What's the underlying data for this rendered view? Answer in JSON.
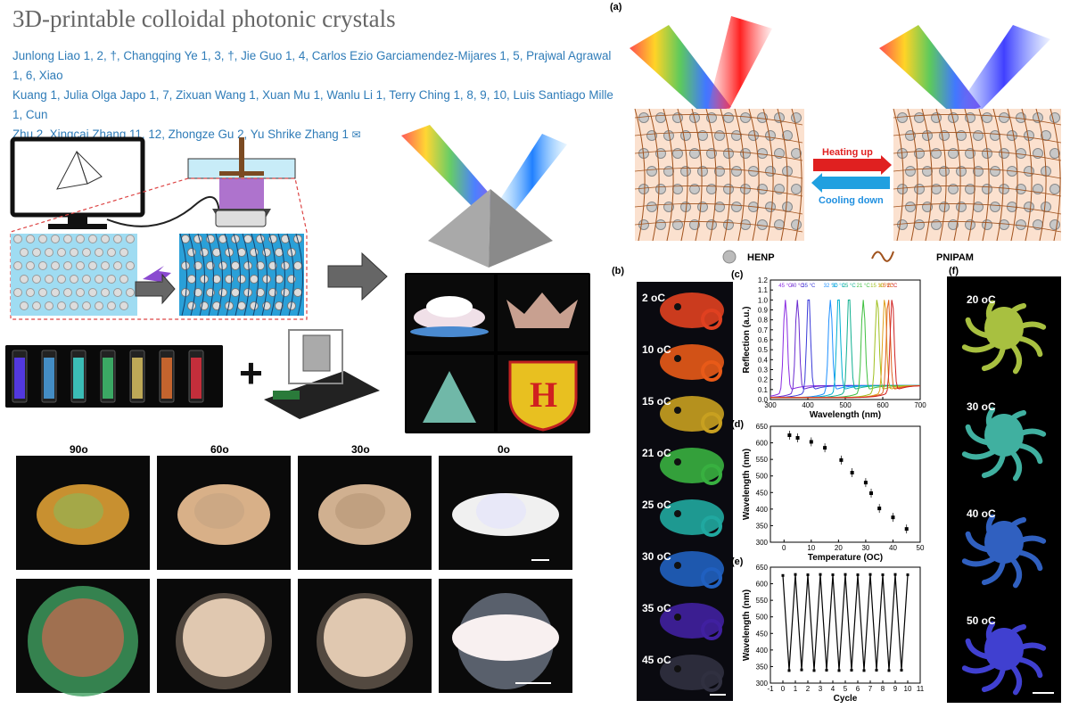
{
  "paper": {
    "title": "3D-printable colloidal photonic crystals",
    "authors_line1": "Junlong Liao 1, 2, †, Changqing Ye 1, 3, †, Jie Guo 1, 4, Carlos Ezio Garciamendez-Mijares 1, 5, Prajwal Agrawal 1, 6, Xiao",
    "authors_line2": "Kuang 1, Julia Olga Japo 1, 7, Zixuan Wang 1, Xuan Mu 1, Wanlu Li 1, Terry Ching 1, 8, 9, 10, Luis Santiago Mille 1, Cun",
    "authors_line3": "Zhu 2, Xingcai Zhang 11, 12, Zhongze Gu 2, Yu Shrike Zhang 1"
  },
  "left_figure": {
    "angles": [
      "90o",
      "60o",
      "30o",
      "0o"
    ],
    "vial_colors": [
      "#5a3cff",
      "#4aa0e0",
      "#40d8d0",
      "#40c070",
      "#d8c060",
      "#e07030",
      "#e03040"
    ]
  },
  "panel_a": {
    "letter": "(a)",
    "heating": "Heating up",
    "cooling": "Cooling down",
    "legend_henp": "HENP",
    "legend_pnipam": "PNIPAM"
  },
  "panel_b": {
    "letter": "(b)",
    "labels": [
      "2 oC",
      "10 oC",
      "15 oC",
      "21 oC",
      "25 oC",
      "30 oC",
      "35 oC",
      "45 oC"
    ],
    "colors": [
      "#e04020",
      "#e85a18",
      "#c8a020",
      "#38b040",
      "#20a8a0",
      "#2060c0",
      "#4020a0",
      "#303040"
    ]
  },
  "panel_f": {
    "letter": "(f)",
    "labels": [
      "20 oC",
      "30 oC",
      "40 oC",
      "50 oC"
    ],
    "colors": [
      "#a8c040",
      "#40b0a0",
      "#3060c0",
      "#4040d0"
    ]
  },
  "chart_data": [
    {
      "id": "c",
      "letter": "(c)",
      "type": "line",
      "xlabel": "Wavelength (nm)",
      "ylabel": "Reflection (a.u.)",
      "xlim": [
        300,
        700
      ],
      "ylim": [
        0,
        1.2
      ],
      "xticks": [
        300,
        400,
        500,
        600,
        700
      ],
      "yticks": [
        0.0,
        0.1,
        0.2,
        0.3,
        0.4,
        0.5,
        0.6,
        0.7,
        0.8,
        0.9,
        1.0,
        1.1,
        1.2
      ],
      "series": [
        {
          "name": "45 °C",
          "peak": 340,
          "color": "#8a2be2"
        },
        {
          "name": "40 °C",
          "peak": 372,
          "color": "#6a2bd0"
        },
        {
          "name": "35 °C",
          "peak": 402,
          "color": "#3a3ad8"
        },
        {
          "name": "32 °C",
          "peak": 460,
          "color": "#1e90ff"
        },
        {
          "name": "30 °C",
          "peak": 482,
          "color": "#00b0d0"
        },
        {
          "name": "25 °C",
          "peak": 510,
          "color": "#10b090"
        },
        {
          "name": "21 °C",
          "peak": 548,
          "color": "#40c040"
        },
        {
          "name": "15 °C",
          "peak": 585,
          "color": "#a0c020"
        },
        {
          "name": "10 °C",
          "peak": 605,
          "color": "#e0a020"
        },
        {
          "name": "5 °C",
          "peak": 615,
          "color": "#e06020"
        },
        {
          "name": "2 °C",
          "peak": 625,
          "color": "#d02020"
        }
      ]
    },
    {
      "id": "d",
      "letter": "(d)",
      "type": "scatter",
      "xlabel": "Temperature (OC)",
      "ylabel": "Wavelength (nm)",
      "xlim": [
        -5,
        50
      ],
      "ylim": [
        300,
        650
      ],
      "xticks": [
        0,
        10,
        20,
        30,
        40,
        50
      ],
      "yticks": [
        300,
        350,
        400,
        450,
        500,
        550,
        600,
        650
      ],
      "x": [
        2,
        5,
        10,
        15,
        21,
        25,
        30,
        32,
        35,
        40,
        45
      ],
      "y": [
        623,
        615,
        603,
        585,
        548,
        510,
        480,
        448,
        402,
        375,
        340
      ]
    },
    {
      "id": "e",
      "letter": "(e)",
      "type": "line",
      "xlabel": "Cycle",
      "ylabel": "Wavelength (nm)",
      "xlim": [
        -1,
        11
      ],
      "ylim": [
        300,
        650
      ],
      "xticks": [
        -1,
        0,
        1,
        2,
        3,
        4,
        5,
        6,
        7,
        8,
        9,
        10,
        11
      ],
      "yticks": [
        300,
        350,
        400,
        450,
        500,
        550,
        600,
        650
      ],
      "x": [
        0,
        0.5,
        1,
        1.5,
        2,
        2.5,
        3,
        3.5,
        4,
        4.5,
        5,
        5.5,
        6,
        6.5,
        7,
        7.5,
        8,
        8.5,
        9,
        9.5,
        10
      ],
      "y": [
        625,
        338,
        628,
        340,
        627,
        338,
        628,
        339,
        627,
        338,
        628,
        339,
        627,
        338,
        628,
        339,
        627,
        338,
        628,
        339,
        627
      ]
    }
  ]
}
